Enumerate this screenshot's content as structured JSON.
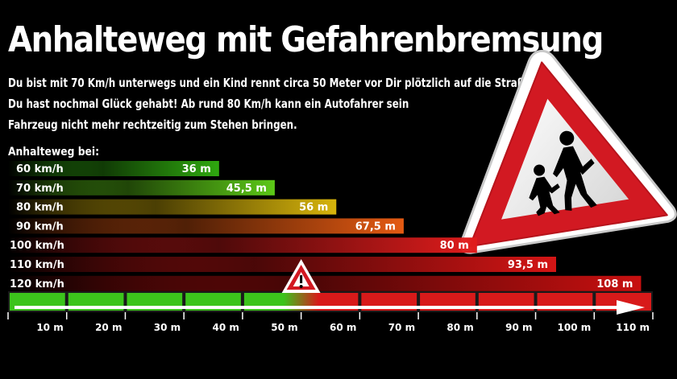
{
  "header": {
    "title": "Anhalteweg mit Gefahrenbremsung",
    "intro_lines": [
      "Du bist mit 70 Km/h unterwegs und ein Kind rennt circa 50 Meter vor Dir plötzlich auf die Straße?",
      "Du hast nochmal Glück gehabt! Ab rund 80 Km/h kann ein Autofahrer sein",
      "Fahrzeug nicht mehr rechtzeitig zum Stehen bringen."
    ]
  },
  "chart_data": {
    "type": "bar",
    "orientation": "horizontal",
    "section_label": "Anhalteweg bei:",
    "categories": [
      "60 km/h",
      "70 km/h",
      "80 km/h",
      "90 km/h",
      "100 km/h",
      "110 km/h",
      "120 km/h"
    ],
    "values": [
      36,
      45.5,
      56,
      67.5,
      80,
      93.5,
      108
    ],
    "value_labels": [
      "36 m",
      "45,5 m",
      "56 m",
      "67,5 m",
      "80 m",
      "93,5 m",
      "108 m"
    ],
    "bar_colors": [
      "#2fa80f",
      "#5cc817",
      "#d7b40b",
      "#e45a12",
      "#e01c1c",
      "#d41515",
      "#c81010"
    ],
    "xlim": [
      0,
      110
    ],
    "x_ticks": [
      10,
      20,
      30,
      40,
      50,
      60,
      70,
      80,
      90,
      100,
      110
    ],
    "x_tick_labels": [
      "10 m",
      "20 m",
      "30 m",
      "40 m",
      "50 m",
      "60 m",
      "70 m",
      "80 m",
      "90 m",
      "100 m",
      "110 m"
    ],
    "danger_threshold": 50,
    "safe_color": "#3cc41c",
    "danger_color": "#d81a1a"
  }
}
